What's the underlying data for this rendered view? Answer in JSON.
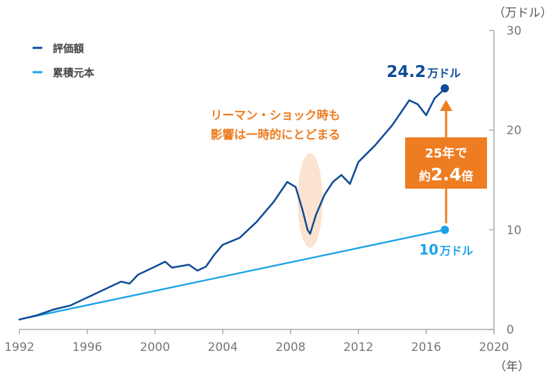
{
  "chart_data": {
    "type": "line",
    "y_unit_label": "（万ドル）",
    "x_unit_label": "（年）",
    "xlim": [
      1992,
      2020
    ],
    "ylim": [
      0,
      30
    ],
    "x_ticks": [
      "1992",
      "1996",
      "2000",
      "2004",
      "2008",
      "2012",
      "2016",
      "2020"
    ],
    "y_ticks": [
      "0",
      "10",
      "20",
      "30"
    ],
    "series": [
      {
        "name": "評価額",
        "color": "#0f4c97",
        "x": [
          1992.0,
          1993.0,
          1994.0,
          1995.0,
          1996.0,
          1997.0,
          1998.0,
          1998.5,
          1999.0,
          2000.0,
          2000.6,
          2001.0,
          2002.0,
          2002.5,
          2003.0,
          2003.5,
          2004.0,
          2005.0,
          2006.0,
          2007.0,
          2007.8,
          2008.3,
          2008.7,
          2009.0,
          2009.15,
          2009.5,
          2010.0,
          2010.5,
          2011.0,
          2011.5,
          2012.0,
          2013.0,
          2014.0,
          2015.0,
          2015.5,
          2016.0,
          2016.5,
          2017.0,
          2017.1
        ],
        "y": [
          1.0,
          1.4,
          2.0,
          2.4,
          3.2,
          4.0,
          4.8,
          4.6,
          5.5,
          6.3,
          6.8,
          6.2,
          6.5,
          5.9,
          6.3,
          7.5,
          8.5,
          9.2,
          10.8,
          12.8,
          14.8,
          14.3,
          12.0,
          10.0,
          9.6,
          11.5,
          13.5,
          14.8,
          15.5,
          14.6,
          16.8,
          18.5,
          20.5,
          23.0,
          22.6,
          21.5,
          23.2,
          24.0,
          24.2
        ]
      },
      {
        "name": "累積元本",
        "color": "#1aa3e8",
        "x": [
          1992.0,
          2017.1
        ],
        "y": [
          1.0,
          10.0
        ]
      }
    ],
    "annotations": {
      "end_value_label": {
        "number": "24.2",
        "unit": "万ドル"
      },
      "principal_label": {
        "number": "10",
        "unit": "万ドル"
      },
      "crisis_note": [
        "リーマン・ショック時も",
        "影響は一時的にとどまる"
      ],
      "growth_box": {
        "line1": "25年で",
        "prefix": "約",
        "number": "2.4",
        "suffix": "倍"
      }
    },
    "colors": {
      "accent": "#ee7d22",
      "highlight": "#fbe3d0",
      "axis": "#aaaaaa"
    }
  }
}
